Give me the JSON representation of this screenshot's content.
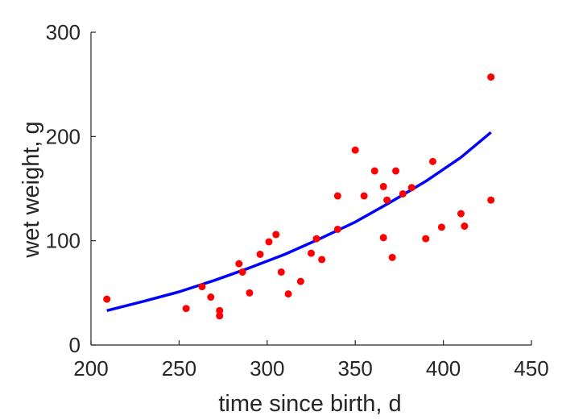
{
  "chart_data": {
    "type": "scatter",
    "xlabel": "time since birth, d",
    "ylabel": "wet weight, g",
    "xlim": [
      200,
      450
    ],
    "ylim": [
      0,
      300
    ],
    "xticks": [
      200,
      250,
      300,
      350,
      400,
      450
    ],
    "yticks": [
      0,
      100,
      200,
      300
    ],
    "grid": false,
    "colors": {
      "points": "#ff0000",
      "curve": "#0000ff",
      "axes": "#262626"
    },
    "series": [
      {
        "kind": "points",
        "x": [
          209,
          254,
          263,
          268,
          273,
          273,
          284,
          286,
          290,
          296,
          301,
          305,
          308,
          312,
          319,
          325,
          328,
          331,
          340,
          340,
          350,
          355,
          361,
          366,
          366,
          368,
          371,
          373,
          377,
          382,
          390,
          394,
          399,
          410,
          412,
          427,
          427
        ],
        "y": [
          44,
          35,
          56,
          46,
          33,
          28,
          78,
          70,
          50,
          87,
          99,
          106,
          70,
          49,
          61,
          88,
          102,
          82,
          111,
          143,
          187,
          143,
          167,
          152,
          103,
          139,
          84,
          167,
          145,
          151,
          102,
          176,
          113,
          126,
          114,
          139,
          257
        ]
      },
      {
        "kind": "curve",
        "x": [
          209,
          230,
          250,
          270,
          290,
          310,
          330,
          350,
          370,
          390,
          410,
          427
        ],
        "y": [
          33,
          42,
          51,
          62,
          74,
          87,
          102,
          118,
          137,
          157,
          180,
          204
        ]
      }
    ]
  }
}
